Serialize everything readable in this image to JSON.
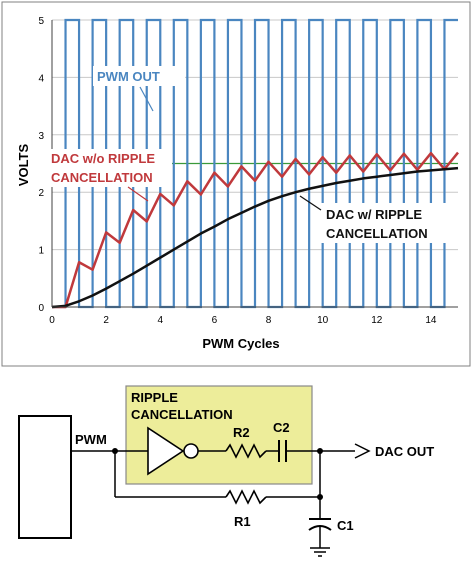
{
  "chart_data": {
    "type": "line",
    "xlabel": "PWM Cycles",
    "ylabel": "VOLTS",
    "xlim": [
      0,
      15
    ],
    "ylim": [
      0,
      5
    ],
    "x_ticks": [
      0,
      2,
      4,
      6,
      8,
      10,
      12,
      14
    ],
    "y_ticks": [
      0,
      1,
      2,
      3,
      4,
      5
    ],
    "grid": true,
    "reference_line": {
      "y": 2.5,
      "color": "#3a9a3a"
    },
    "series": [
      {
        "name": "PWM OUT",
        "color": "#4a86c0",
        "high": 5,
        "low": 0,
        "period_cycles": 1,
        "duty": 0.5,
        "start": 0.5
      },
      {
        "name": "DAC w/o RIPPLE CANCELLATION",
        "color": "#c0393c",
        "x": [
          0.0,
          0.5,
          1.0,
          1.5,
          2.0,
          2.5,
          3.0,
          3.5,
          4.0,
          4.5,
          5.0,
          5.5,
          6.0,
          6.5,
          7.0,
          7.5,
          8.0,
          8.5,
          9.0,
          9.5,
          10.0,
          10.5,
          11.0,
          11.5,
          12.0,
          12.5,
          13.0,
          13.5,
          14.0,
          14.5,
          15.0
        ],
        "y": [
          0.0,
          0.0,
          0.78,
          0.65,
          1.3,
          1.12,
          1.69,
          1.49,
          1.97,
          1.77,
          2.19,
          1.96,
          2.34,
          2.1,
          2.45,
          2.2,
          2.53,
          2.27,
          2.58,
          2.31,
          2.61,
          2.34,
          2.64,
          2.36,
          2.66,
          2.38,
          2.67,
          2.39,
          2.68,
          2.4,
          2.69
        ]
      },
      {
        "name": "DAC w/ RIPPLE CANCELLATION",
        "color": "#111111",
        "x": [
          0.0,
          0.5,
          1.0,
          1.5,
          2.0,
          2.5,
          3.0,
          3.5,
          4.0,
          4.5,
          5.0,
          5.5,
          6.0,
          6.5,
          7.0,
          7.5,
          8.0,
          8.5,
          9.0,
          9.5,
          10.0,
          10.5,
          11.0,
          11.5,
          12.0,
          12.5,
          13.0,
          13.5,
          14.0,
          14.5,
          15.0
        ],
        "y": [
          0.0,
          0.02,
          0.1,
          0.2,
          0.32,
          0.45,
          0.58,
          0.72,
          0.86,
          1.0,
          1.14,
          1.28,
          1.4,
          1.53,
          1.64,
          1.75,
          1.85,
          1.93,
          2.0,
          2.06,
          2.11,
          2.16,
          2.2,
          2.24,
          2.27,
          2.3,
          2.33,
          2.36,
          2.38,
          2.4,
          2.42
        ]
      }
    ],
    "annotations": [
      {
        "text": "PWM OUT",
        "target": "PWM OUT"
      },
      {
        "text_lines": [
          "DAC w/o RIPPLE",
          "CANCELLATION"
        ],
        "target": "DAC w/o RIPPLE CANCELLATION"
      },
      {
        "text_lines": [
          "DAC w/ RIPPLE",
          "CANCELLATION"
        ],
        "target": "DAC w/ RIPPLE CANCELLATION"
      }
    ]
  },
  "circuit": {
    "pwm_label": "PWM",
    "ripple_box_lines": [
      "RIPPLE",
      "CANCELLATION"
    ],
    "r2_label": "R2",
    "c2_label": "C2",
    "r1_label": "R1",
    "c1_label": "C1",
    "output_label": "DAC OUT"
  }
}
